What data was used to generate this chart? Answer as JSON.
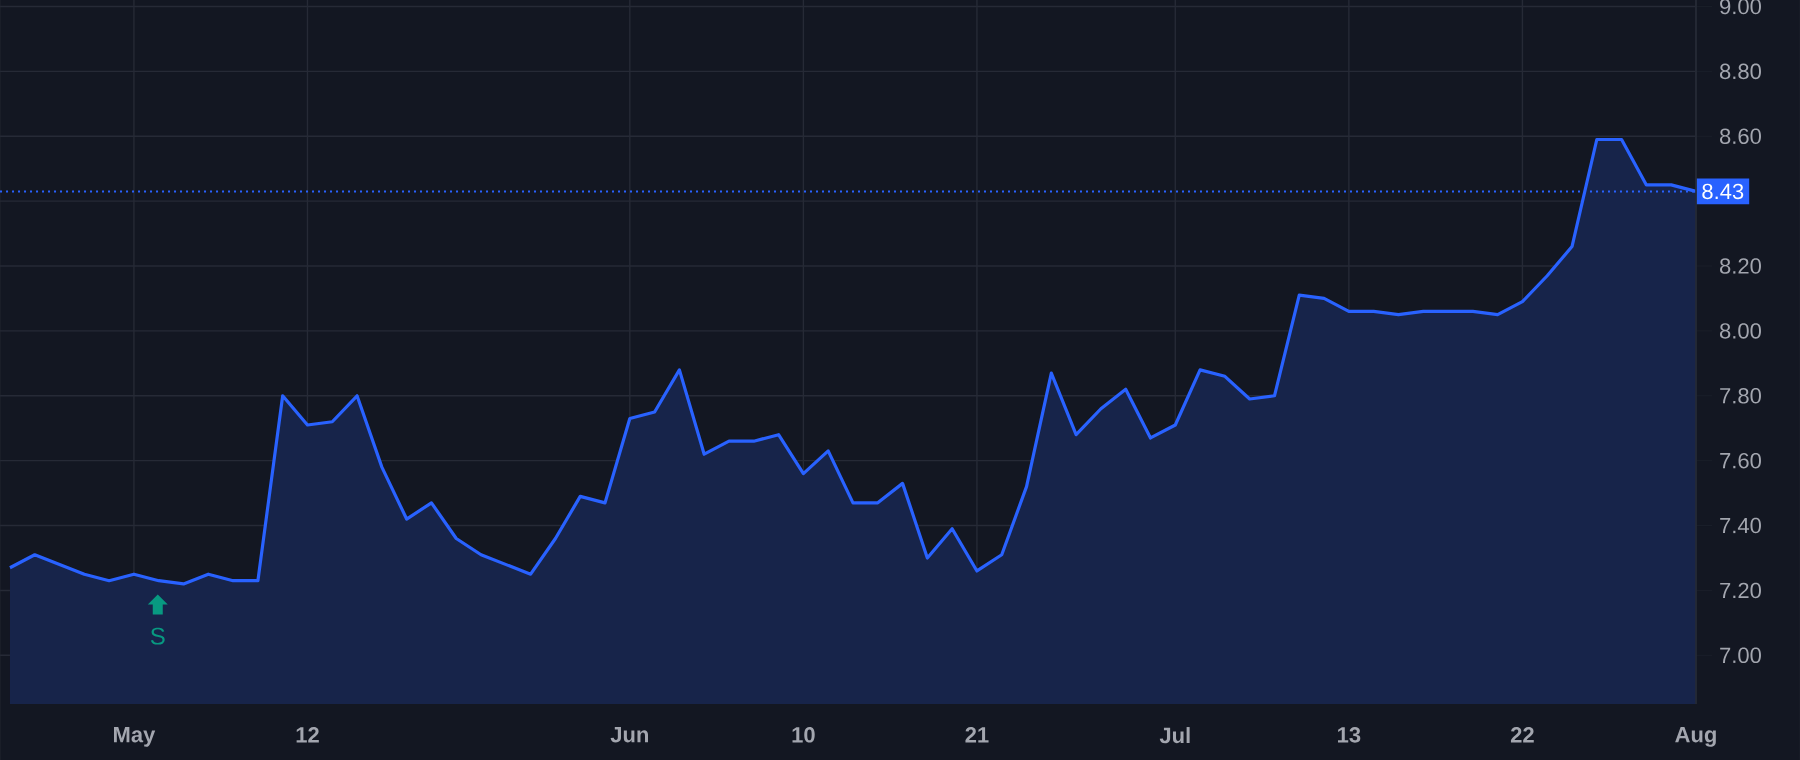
{
  "chart_data": {
    "type": "area",
    "color": "#2962ff",
    "categories": [
      null,
      null,
      null,
      null,
      null,
      "May",
      null,
      null,
      null,
      null,
      null,
      null,
      "12",
      null,
      null,
      null,
      null,
      null,
      null,
      null,
      null,
      null,
      null,
      null,
      null,
      "Jun",
      null,
      null,
      null,
      null,
      null,
      null,
      "10",
      null,
      null,
      null,
      null,
      null,
      null,
      "21",
      null,
      null,
      null,
      null,
      null,
      null,
      null,
      "Jul",
      null,
      null,
      null,
      null,
      null,
      null,
      "13",
      null,
      null,
      null,
      null,
      null,
      null,
      "22",
      null,
      null,
      null,
      null,
      null,
      null,
      "Aug"
    ],
    "values": [
      7.27,
      7.31,
      7.28,
      7.25,
      7.23,
      7.25,
      7.23,
      7.22,
      7.25,
      7.23,
      7.23,
      7.8,
      7.71,
      7.72,
      7.8,
      7.58,
      7.42,
      7.47,
      7.36,
      7.31,
      7.28,
      7.25,
      7.36,
      7.49,
      7.47,
      7.73,
      7.75,
      7.88,
      7.62,
      7.66,
      7.66,
      7.68,
      7.56,
      7.63,
      7.47,
      7.47,
      7.53,
      7.3,
      7.39,
      7.26,
      7.31,
      7.52,
      7.87,
      7.68,
      7.76,
      7.82,
      7.67,
      7.71,
      7.88,
      7.86,
      7.79,
      7.8,
      8.11,
      8.1,
      8.06,
      8.06,
      8.05,
      8.06,
      8.06,
      8.06,
      8.05,
      8.09,
      8.17,
      8.26,
      8.59,
      8.59,
      8.45,
      8.45,
      8.43
    ],
    "ylim": [
      6.85,
      9.02
    ],
    "yticks": [
      {
        "value": 7.0,
        "label": "7.00"
      },
      {
        "value": 7.2,
        "label": "7.20"
      },
      {
        "value": 7.4,
        "label": "7.40"
      },
      {
        "value": 7.6,
        "label": "7.60"
      },
      {
        "value": 7.8,
        "label": "7.80"
      },
      {
        "value": 8.0,
        "label": "8.00"
      },
      {
        "value": 8.2,
        "label": "8.20"
      },
      {
        "value": 8.4,
        "label": null
      },
      {
        "value": 8.6,
        "label": "8.60"
      },
      {
        "value": 8.8,
        "label": "8.80"
      },
      {
        "value": 9.0,
        "label": "9.00"
      }
    ],
    "ref_lines": [
      {
        "axis": "y",
        "value": 8.43,
        "label": "8.43",
        "color": "#2962ff",
        "line_style": "dotted"
      }
    ],
    "annotations": [
      "S"
    ],
    "grid": true,
    "marker": "none",
    "line_style": "solid"
  }
}
